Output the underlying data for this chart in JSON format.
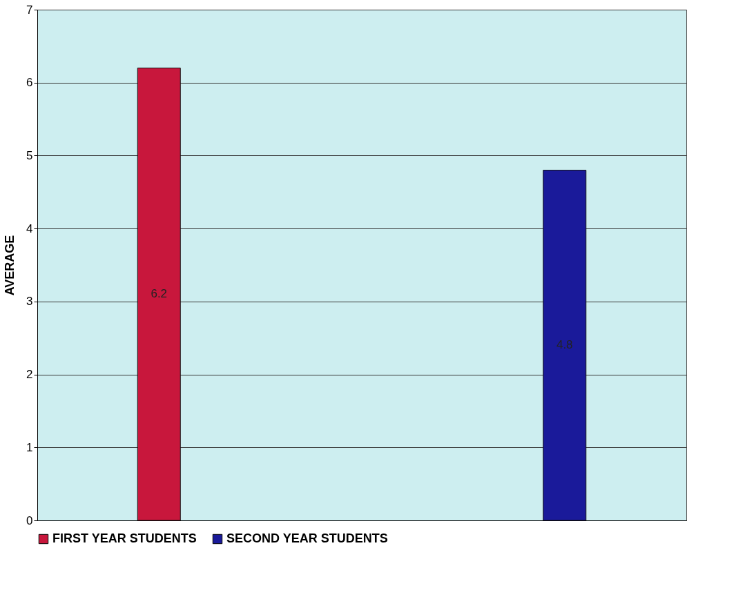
{
  "chart_data": {
    "type": "bar",
    "ylabel": "AVERAGE",
    "categories": [
      null,
      null
    ],
    "series": [
      {
        "name": "FIRST YEAR STUDENTS",
        "color": "#c8173c",
        "values": [
          6.2,
          null
        ]
      },
      {
        "name": "SECOND YEAR STUDENTS",
        "color": "#1a1a9a",
        "values": [
          null,
          4.8
        ]
      }
    ],
    "ylim": [
      0,
      7
    ],
    "yticks": [
      0,
      1,
      2,
      3,
      4,
      5,
      6,
      7
    ],
    "grid": "y",
    "legend": "bottom",
    "tick_labels": "y",
    "data_labels": true
  }
}
